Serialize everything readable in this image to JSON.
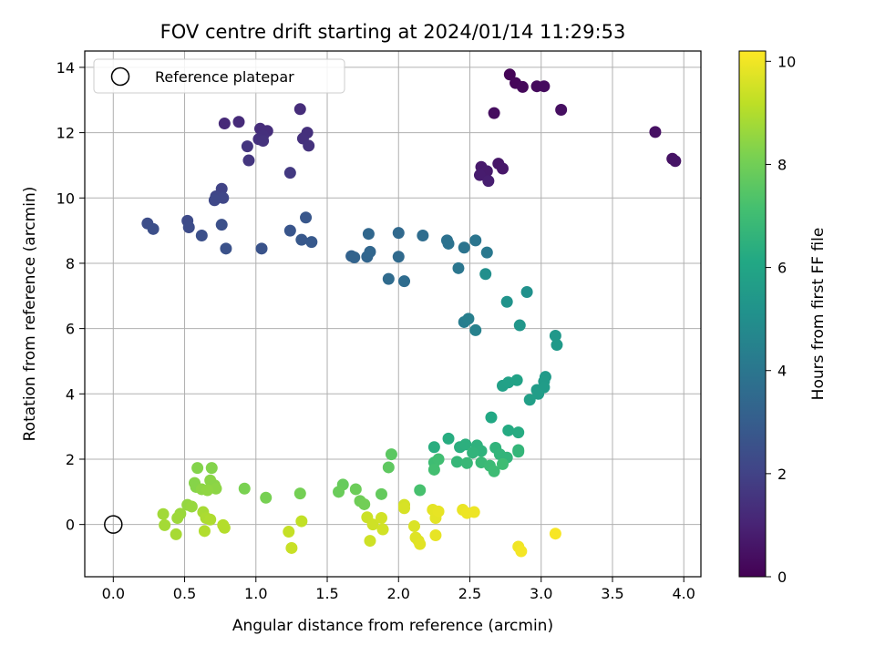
{
  "chart_data": {
    "type": "scatter",
    "title": "FOV centre drift starting at 2024/01/14 11:29:53",
    "xlabel": "Angular distance from reference (arcmin)",
    "ylabel": "Rotation from reference (arcmin)",
    "xlim": [
      -0.2,
      4.12
    ],
    "ylim": [
      -1.6,
      14.5
    ],
    "xticks": [
      "0.0",
      "0.5",
      "1.0",
      "1.5",
      "2.0",
      "2.5",
      "3.0",
      "3.5",
      "4.0"
    ],
    "yticks": [
      "0",
      "2",
      "4",
      "6",
      "8",
      "10",
      "12",
      "14"
    ],
    "grid": true,
    "colorbar": {
      "label": "Hours from first FF file",
      "colormap": "viridis",
      "range": [
        0,
        10.2
      ],
      "ticks": [
        "0",
        "2",
        "4",
        "6",
        "8",
        "10"
      ]
    },
    "legend": {
      "position": "upper-left",
      "entries": [
        "Reference platepar"
      ]
    },
    "reference_point": {
      "x": 0.0,
      "y": 0.0
    },
    "points": [
      {
        "x": 2.78,
        "y": 13.78,
        "h": 0.1
      },
      {
        "x": 2.82,
        "y": 13.52,
        "h": 0.15
      },
      {
        "x": 2.87,
        "y": 13.4,
        "h": 0.2
      },
      {
        "x": 2.97,
        "y": 13.42,
        "h": 0.25
      },
      {
        "x": 3.02,
        "y": 13.42,
        "h": 0.3
      },
      {
        "x": 2.67,
        "y": 12.6,
        "h": 0.35
      },
      {
        "x": 3.14,
        "y": 12.7,
        "h": 0.4
      },
      {
        "x": 3.8,
        "y": 12.02,
        "h": 0.45
      },
      {
        "x": 3.92,
        "y": 11.2,
        "h": 0.5
      },
      {
        "x": 3.94,
        "y": 11.13,
        "h": 0.55
      },
      {
        "x": 2.7,
        "y": 11.05,
        "h": 0.6
      },
      {
        "x": 2.73,
        "y": 10.9,
        "h": 0.65
      },
      {
        "x": 2.58,
        "y": 10.95,
        "h": 0.7
      },
      {
        "x": 2.62,
        "y": 10.82,
        "h": 0.75
      },
      {
        "x": 2.57,
        "y": 10.7,
        "h": 0.8
      },
      {
        "x": 2.63,
        "y": 10.52,
        "h": 0.85
      },
      {
        "x": 0.78,
        "y": 12.28,
        "h": 1.2
      },
      {
        "x": 0.88,
        "y": 12.33,
        "h": 1.25
      },
      {
        "x": 1.03,
        "y": 12.12,
        "h": 1.3
      },
      {
        "x": 1.08,
        "y": 12.05,
        "h": 1.35
      },
      {
        "x": 1.05,
        "y": 11.9,
        "h": 1.4
      },
      {
        "x": 1.02,
        "y": 11.8,
        "h": 1.45
      },
      {
        "x": 1.05,
        "y": 11.75,
        "h": 1.5
      },
      {
        "x": 0.94,
        "y": 11.58,
        "h": 1.55
      },
      {
        "x": 0.95,
        "y": 11.15,
        "h": 1.6
      },
      {
        "x": 1.31,
        "y": 12.72,
        "h": 1.3
      },
      {
        "x": 1.36,
        "y": 12.0,
        "h": 1.4
      },
      {
        "x": 1.33,
        "y": 11.82,
        "h": 1.45
      },
      {
        "x": 1.37,
        "y": 11.6,
        "h": 1.5
      },
      {
        "x": 1.24,
        "y": 10.77,
        "h": 1.7
      },
      {
        "x": 0.76,
        "y": 10.28,
        "h": 2.0
      },
      {
        "x": 0.72,
        "y": 10.05,
        "h": 2.1
      },
      {
        "x": 0.77,
        "y": 10.0,
        "h": 2.15
      },
      {
        "x": 0.71,
        "y": 9.93,
        "h": 2.2
      },
      {
        "x": 0.52,
        "y": 9.3,
        "h": 2.3
      },
      {
        "x": 0.53,
        "y": 9.1,
        "h": 2.35
      },
      {
        "x": 0.24,
        "y": 9.22,
        "h": 2.4
      },
      {
        "x": 0.28,
        "y": 9.05,
        "h": 2.45
      },
      {
        "x": 0.62,
        "y": 8.85,
        "h": 2.5
      },
      {
        "x": 0.76,
        "y": 9.18,
        "h": 2.5
      },
      {
        "x": 0.79,
        "y": 8.45,
        "h": 2.55
      },
      {
        "x": 1.04,
        "y": 8.45,
        "h": 2.6
      },
      {
        "x": 1.24,
        "y": 9.0,
        "h": 2.7
      },
      {
        "x": 1.35,
        "y": 9.4,
        "h": 2.75
      },
      {
        "x": 1.32,
        "y": 8.72,
        "h": 2.8
      },
      {
        "x": 1.39,
        "y": 8.65,
        "h": 2.85
      },
      {
        "x": 1.67,
        "y": 8.22,
        "h": 3.2
      },
      {
        "x": 1.69,
        "y": 8.18,
        "h": 3.25
      },
      {
        "x": 1.78,
        "y": 8.2,
        "h": 3.3
      },
      {
        "x": 1.8,
        "y": 8.35,
        "h": 3.35
      },
      {
        "x": 1.79,
        "y": 8.9,
        "h": 3.4
      },
      {
        "x": 2.0,
        "y": 8.93,
        "h": 3.45
      },
      {
        "x": 2.0,
        "y": 8.2,
        "h": 3.5
      },
      {
        "x": 1.93,
        "y": 7.52,
        "h": 3.55
      },
      {
        "x": 2.04,
        "y": 7.45,
        "h": 3.6
      },
      {
        "x": 2.17,
        "y": 8.85,
        "h": 3.65
      },
      {
        "x": 2.34,
        "y": 8.7,
        "h": 3.8
      },
      {
        "x": 2.35,
        "y": 8.6,
        "h": 3.85
      },
      {
        "x": 2.46,
        "y": 8.48,
        "h": 3.9
      },
      {
        "x": 2.54,
        "y": 8.7,
        "h": 3.95
      },
      {
        "x": 2.42,
        "y": 7.85,
        "h": 4.0
      },
      {
        "x": 2.62,
        "y": 8.33,
        "h": 4.1
      },
      {
        "x": 2.46,
        "y": 6.2,
        "h": 4.3
      },
      {
        "x": 2.49,
        "y": 6.3,
        "h": 4.35
      },
      {
        "x": 2.54,
        "y": 5.95,
        "h": 4.45
      },
      {
        "x": 2.61,
        "y": 7.67,
        "h": 5.0
      },
      {
        "x": 2.9,
        "y": 7.12,
        "h": 5.1
      },
      {
        "x": 2.76,
        "y": 6.82,
        "h": 5.2
      },
      {
        "x": 2.85,
        "y": 6.1,
        "h": 5.3
      },
      {
        "x": 3.1,
        "y": 5.78,
        "h": 5.4
      },
      {
        "x": 3.11,
        "y": 5.5,
        "h": 5.45
      },
      {
        "x": 3.03,
        "y": 4.52,
        "h": 5.5
      },
      {
        "x": 3.02,
        "y": 4.38,
        "h": 5.55
      },
      {
        "x": 2.97,
        "y": 4.12,
        "h": 5.6
      },
      {
        "x": 3.02,
        "y": 4.2,
        "h": 5.6
      },
      {
        "x": 2.98,
        "y": 4.0,
        "h": 5.65
      },
      {
        "x": 2.92,
        "y": 3.82,
        "h": 5.7
      },
      {
        "x": 2.73,
        "y": 4.25,
        "h": 5.75
      },
      {
        "x": 2.77,
        "y": 4.35,
        "h": 5.8
      },
      {
        "x": 2.83,
        "y": 4.42,
        "h": 5.85
      },
      {
        "x": 2.65,
        "y": 3.28,
        "h": 6.1
      },
      {
        "x": 2.77,
        "y": 2.88,
        "h": 6.2
      },
      {
        "x": 2.84,
        "y": 2.82,
        "h": 6.25
      },
      {
        "x": 2.35,
        "y": 2.63,
        "h": 6.3
      },
      {
        "x": 2.25,
        "y": 2.37,
        "h": 6.35
      },
      {
        "x": 2.43,
        "y": 2.37,
        "h": 6.4
      },
      {
        "x": 2.47,
        "y": 2.45,
        "h": 6.45
      },
      {
        "x": 2.55,
        "y": 2.42,
        "h": 6.5
      },
      {
        "x": 2.58,
        "y": 2.25,
        "h": 6.55
      },
      {
        "x": 2.52,
        "y": 2.2,
        "h": 6.6
      },
      {
        "x": 2.68,
        "y": 2.35,
        "h": 6.6
      },
      {
        "x": 2.71,
        "y": 2.15,
        "h": 6.65
      },
      {
        "x": 2.76,
        "y": 2.05,
        "h": 6.65
      },
      {
        "x": 2.84,
        "y": 2.28,
        "h": 6.7
      },
      {
        "x": 2.84,
        "y": 2.23,
        "h": 6.7
      },
      {
        "x": 2.41,
        "y": 1.92,
        "h": 6.75
      },
      {
        "x": 2.48,
        "y": 1.88,
        "h": 6.8
      },
      {
        "x": 2.58,
        "y": 1.9,
        "h": 6.85
      },
      {
        "x": 2.64,
        "y": 1.8,
        "h": 6.9
      },
      {
        "x": 2.67,
        "y": 1.63,
        "h": 6.95
      },
      {
        "x": 2.73,
        "y": 1.85,
        "h": 7.0
      },
      {
        "x": 2.25,
        "y": 1.9,
        "h": 7.0
      },
      {
        "x": 2.28,
        "y": 2.0,
        "h": 7.05
      },
      {
        "x": 2.25,
        "y": 1.68,
        "h": 7.1
      },
      {
        "x": 2.15,
        "y": 1.05,
        "h": 7.2
      },
      {
        "x": 1.95,
        "y": 2.15,
        "h": 7.6
      },
      {
        "x": 1.93,
        "y": 1.75,
        "h": 7.65
      },
      {
        "x": 1.88,
        "y": 0.93,
        "h": 7.75
      },
      {
        "x": 1.61,
        "y": 1.22,
        "h": 7.8
      },
      {
        "x": 1.58,
        "y": 1.0,
        "h": 7.85
      },
      {
        "x": 1.7,
        "y": 1.08,
        "h": 7.9
      },
      {
        "x": 1.73,
        "y": 0.72,
        "h": 7.95
      },
      {
        "x": 1.76,
        "y": 0.62,
        "h": 8.0
      },
      {
        "x": 1.31,
        "y": 0.95,
        "h": 8.05
      },
      {
        "x": 1.07,
        "y": 0.82,
        "h": 8.1
      },
      {
        "x": 0.92,
        "y": 1.1,
        "h": 8.15
      },
      {
        "x": 0.59,
        "y": 1.73,
        "h": 8.3
      },
      {
        "x": 0.69,
        "y": 1.73,
        "h": 8.3
      },
      {
        "x": 0.57,
        "y": 1.27,
        "h": 8.35
      },
      {
        "x": 0.58,
        "y": 1.15,
        "h": 8.35
      },
      {
        "x": 0.68,
        "y": 1.35,
        "h": 8.4
      },
      {
        "x": 0.71,
        "y": 1.2,
        "h": 8.4
      },
      {
        "x": 0.72,
        "y": 1.1,
        "h": 8.45
      },
      {
        "x": 0.62,
        "y": 1.08,
        "h": 8.45
      },
      {
        "x": 0.66,
        "y": 1.05,
        "h": 8.5
      },
      {
        "x": 0.52,
        "y": 0.6,
        "h": 8.55
      },
      {
        "x": 0.55,
        "y": 0.55,
        "h": 8.6
      },
      {
        "x": 0.47,
        "y": 0.33,
        "h": 8.65
      },
      {
        "x": 0.45,
        "y": 0.2,
        "h": 8.7
      },
      {
        "x": 0.35,
        "y": 0.32,
        "h": 8.75
      },
      {
        "x": 0.36,
        "y": -0.02,
        "h": 8.8
      },
      {
        "x": 0.44,
        "y": -0.3,
        "h": 8.85
      },
      {
        "x": 0.63,
        "y": 0.38,
        "h": 8.85
      },
      {
        "x": 0.65,
        "y": 0.2,
        "h": 8.9
      },
      {
        "x": 0.68,
        "y": 0.15,
        "h": 8.95
      },
      {
        "x": 0.64,
        "y": -0.2,
        "h": 9.0
      },
      {
        "x": 0.77,
        "y": -0.02,
        "h": 9.05
      },
      {
        "x": 0.78,
        "y": -0.1,
        "h": 9.05
      },
      {
        "x": 1.32,
        "y": 0.1,
        "h": 9.25
      },
      {
        "x": 1.23,
        "y": -0.22,
        "h": 9.3
      },
      {
        "x": 1.25,
        "y": -0.72,
        "h": 9.35
      },
      {
        "x": 1.78,
        "y": 0.22,
        "h": 9.4
      },
      {
        "x": 1.8,
        "y": -0.5,
        "h": 9.45
      },
      {
        "x": 1.82,
        "y": 0.0,
        "h": 9.45
      },
      {
        "x": 1.88,
        "y": 0.2,
        "h": 9.5
      },
      {
        "x": 1.89,
        "y": -0.15,
        "h": 9.5
      },
      {
        "x": 2.04,
        "y": 0.6,
        "h": 9.55
      },
      {
        "x": 2.04,
        "y": 0.5,
        "h": 9.6
      },
      {
        "x": 2.11,
        "y": -0.05,
        "h": 9.65
      },
      {
        "x": 2.12,
        "y": -0.4,
        "h": 9.7
      },
      {
        "x": 2.14,
        "y": -0.5,
        "h": 9.7
      },
      {
        "x": 2.15,
        "y": -0.6,
        "h": 9.75
      },
      {
        "x": 2.24,
        "y": 0.45,
        "h": 9.8
      },
      {
        "x": 2.26,
        "y": 0.2,
        "h": 9.8
      },
      {
        "x": 2.28,
        "y": 0.4,
        "h": 9.85
      },
      {
        "x": 2.26,
        "y": -0.33,
        "h": 9.85
      },
      {
        "x": 2.45,
        "y": 0.45,
        "h": 9.9
      },
      {
        "x": 2.48,
        "y": 0.35,
        "h": 9.95
      },
      {
        "x": 2.53,
        "y": 0.38,
        "h": 9.95
      },
      {
        "x": 2.84,
        "y": -0.68,
        "h": 10.0
      },
      {
        "x": 2.86,
        "y": -0.82,
        "h": 10.05
      },
      {
        "x": 3.1,
        "y": -0.28,
        "h": 10.1
      }
    ]
  }
}
